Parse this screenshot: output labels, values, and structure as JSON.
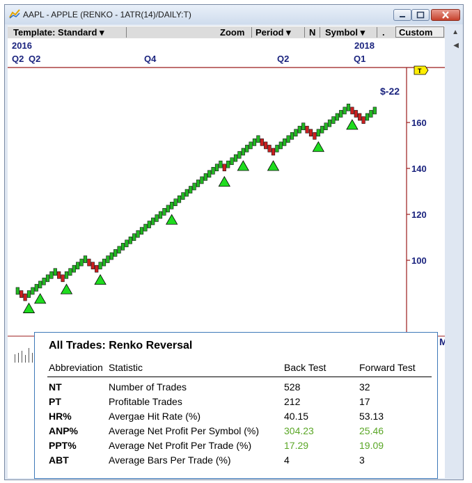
{
  "window": {
    "title": "AAPL - APPLE (RENKO - 1ATR(14)/DAILY:T)"
  },
  "toolbar": {
    "template": "Template: Standard",
    "zoom": "Zoom",
    "period": "Period",
    "n": "N",
    "symbol": "Symbol",
    "dot": ".",
    "custom": "Custom",
    "dropdown_glyph": "▾"
  },
  "chart": {
    "years": [
      {
        "label": "2016"
      },
      {
        "label": "2018"
      }
    ],
    "quarters": [
      {
        "label": "Q2"
      },
      {
        "label": "Q2"
      },
      {
        "label": "Q4"
      },
      {
        "label": "Q2"
      },
      {
        "label": "Q1"
      }
    ],
    "price_ticks": [
      {
        "label": "160",
        "value": 160
      },
      {
        "label": "140",
        "value": 140
      },
      {
        "label": "120",
        "value": 120
      },
      {
        "label": "100",
        "value": 100
      }
    ],
    "annotation": "$-22",
    "marker_label": "T",
    "right_label": "M",
    "colors": {
      "up": "#22b822",
      "down": "#cc1f1f",
      "signal": "#1fdc1f",
      "axis": "#9b1b1b",
      "label": "#1a237e"
    },
    "icons": [
      "app-icon",
      "renko-brick",
      "buy-signal-triangle",
      "price-marker-flag",
      "volume-bars"
    ]
  },
  "chart_data": {
    "type": "renko",
    "y_unit": "price",
    "brick_path": [
      "U",
      "D",
      "D",
      "U",
      "U",
      "U",
      "U",
      "U",
      "U",
      "U",
      "U",
      "D",
      "D",
      "U",
      "U",
      "U",
      "U",
      "U",
      "U",
      "D",
      "D",
      "D",
      "U",
      "U",
      "U",
      "U",
      "U",
      "U",
      "U",
      "U",
      "U",
      "U",
      "U",
      "U",
      "U",
      "U",
      "U",
      "U",
      "U",
      "U",
      "U",
      "U",
      "U",
      "U",
      "U",
      "U",
      "U",
      "U",
      "U",
      "U",
      "U",
      "U",
      "U",
      "U",
      "U",
      "D",
      "U",
      "U",
      "U",
      "U",
      "U",
      "U",
      "U",
      "U",
      "U",
      "D",
      "D",
      "D",
      "D",
      "U",
      "U",
      "U",
      "U",
      "U",
      "U",
      "U",
      "U",
      "D",
      "D",
      "D",
      "U",
      "U",
      "U",
      "U",
      "U",
      "U",
      "U",
      "U",
      "U",
      "D",
      "D",
      "D",
      "D",
      "U",
      "U",
      "U"
    ],
    "buy_signals": [
      {
        "label": "buy",
        "brick_index": 3
      },
      {
        "label": "buy",
        "brick_index": 6
      },
      {
        "label": "buy",
        "brick_index": 13
      },
      {
        "label": "buy",
        "brick_index": 22
      },
      {
        "label": "buy",
        "brick_index": 41
      },
      {
        "label": "buy",
        "brick_index": 55
      },
      {
        "label": "buy",
        "brick_index": 60
      },
      {
        "label": "buy",
        "brick_index": 68
      },
      {
        "label": "buy",
        "brick_index": 80
      },
      {
        "label": "buy",
        "brick_index": 89
      }
    ]
  },
  "stats": {
    "title": "All Trades: Renko Reversal",
    "headers": {
      "abbr": "Abbreviation",
      "stat": "Statistic",
      "back": "Back Test",
      "fwd": "Forward Test"
    },
    "rows": [
      {
        "abbr": "NT",
        "stat": "Number of Trades",
        "back": "528",
        "fwd": "32"
      },
      {
        "abbr": "PT",
        "stat": "Profitable Trades",
        "back": "212",
        "fwd": "17"
      },
      {
        "abbr": "HR%",
        "stat": "Avergae Hit Rate (%)",
        "back": "40.15",
        "fwd": "53.13"
      },
      {
        "abbr": "ANP%",
        "stat": "Average Net Profit Per Symbol (%)",
        "back": "304.23",
        "fwd": "25.46"
      },
      {
        "abbr": "PPT%",
        "stat": "Average Net Profit Per Trade (%)",
        "back": "17.29",
        "fwd": "19.09"
      },
      {
        "abbr": "ABT",
        "stat": "Average Bars Per Trade (%)",
        "back": "4",
        "fwd": "3"
      }
    ]
  }
}
